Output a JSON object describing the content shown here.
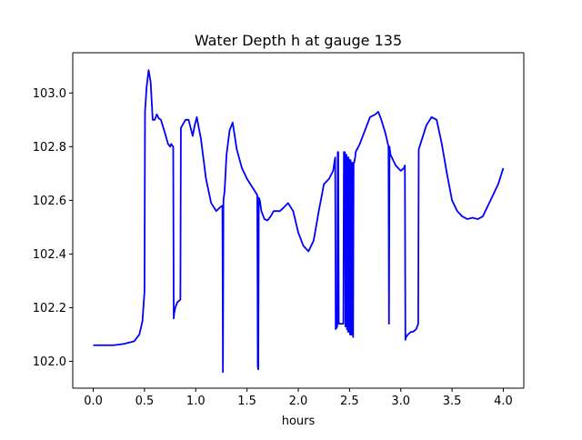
{
  "chart_data": {
    "type": "line",
    "title": "Water Depth h at gauge 135",
    "xlabel": "hours",
    "ylabel": "",
    "xlim": [
      -0.2,
      4.2
    ],
    "ylim": [
      101.9,
      103.15
    ],
    "xticks": [
      0.0,
      0.5,
      1.0,
      1.5,
      2.0,
      2.5,
      3.0,
      3.5,
      4.0
    ],
    "xtick_labels": [
      "0.0",
      "0.5",
      "1.0",
      "1.5",
      "2.0",
      "2.5",
      "3.0",
      "3.5",
      "4.0"
    ],
    "yticks": [
      102.0,
      102.2,
      102.4,
      102.6,
      102.8,
      103.0
    ],
    "ytick_labels": [
      "102.0",
      "102.2",
      "102.4",
      "102.6",
      "102.8",
      "103.0"
    ],
    "grid": false,
    "series": [
      {
        "color": "#0000ff",
        "x": [
          0.0,
          0.2,
          0.3,
          0.4,
          0.45,
          0.48,
          0.5,
          0.505,
          0.52,
          0.54,
          0.56,
          0.58,
          0.6,
          0.62,
          0.64,
          0.66,
          0.7,
          0.73,
          0.75,
          0.76,
          0.78,
          0.785,
          0.79,
          0.8,
          0.82,
          0.85,
          0.855,
          0.87,
          0.9,
          0.93,
          0.95,
          0.97,
          0.99,
          1.01,
          1.05,
          1.1,
          1.15,
          1.2,
          1.24,
          1.26,
          1.265,
          1.27,
          1.28,
          1.285,
          1.3,
          1.33,
          1.36,
          1.4,
          1.45,
          1.5,
          1.55,
          1.6,
          1.605,
          1.61,
          1.615,
          1.625,
          1.64,
          1.67,
          1.7,
          1.73,
          1.76,
          1.79,
          1.82,
          1.85,
          1.9,
          1.95,
          2.0,
          2.05,
          2.1,
          2.15,
          2.2,
          2.25,
          2.3,
          2.34,
          2.36,
          2.365,
          2.38,
          2.385,
          2.39,
          2.395,
          2.44,
          2.445,
          2.455,
          2.46,
          2.47,
          2.475,
          2.48,
          2.485,
          2.49,
          2.495,
          2.5,
          2.505,
          2.51,
          2.515,
          2.52,
          2.525,
          2.53,
          2.535,
          2.54,
          2.545,
          2.55,
          2.555,
          2.56,
          2.6,
          2.65,
          2.7,
          2.75,
          2.78,
          2.81,
          2.85,
          2.88,
          2.885,
          2.89,
          2.9,
          2.95,
          3.0,
          3.03,
          3.04,
          3.045,
          3.05,
          3.07,
          3.1,
          3.12,
          3.15,
          3.17,
          3.175,
          3.2,
          3.25,
          3.3,
          3.35,
          3.4,
          3.45,
          3.5,
          3.55,
          3.6,
          3.65,
          3.7,
          3.75,
          3.8,
          3.85,
          3.9,
          3.95,
          4.0
        ],
        "y": [
          102.06,
          102.06,
          102.065,
          102.075,
          102.1,
          102.15,
          102.26,
          102.93,
          103.02,
          103.085,
          103.04,
          102.9,
          102.9,
          102.92,
          102.905,
          102.9,
          102.85,
          102.81,
          102.8,
          102.81,
          102.8,
          102.16,
          102.18,
          102.2,
          102.22,
          102.23,
          102.87,
          102.88,
          102.9,
          102.9,
          102.87,
          102.84,
          102.88,
          102.91,
          102.83,
          102.68,
          102.59,
          102.56,
          102.575,
          102.58,
          101.96,
          102.6,
          102.63,
          102.66,
          102.77,
          102.86,
          102.89,
          102.79,
          102.72,
          102.68,
          102.65,
          102.62,
          101.98,
          101.97,
          102.61,
          102.6,
          102.56,
          102.53,
          102.525,
          102.54,
          102.56,
          102.56,
          102.56,
          102.57,
          102.59,
          102.56,
          102.48,
          102.43,
          102.41,
          102.45,
          102.56,
          102.66,
          102.68,
          102.71,
          102.76,
          102.12,
          102.13,
          102.78,
          102.78,
          102.14,
          102.14,
          102.78,
          102.78,
          102.13,
          102.77,
          102.12,
          102.76,
          102.11,
          102.76,
          102.11,
          102.75,
          102.1,
          102.75,
          102.1,
          102.74,
          102.1,
          102.74,
          102.09,
          102.74,
          102.74,
          102.75,
          102.76,
          102.78,
          102.81,
          102.86,
          102.91,
          102.92,
          102.93,
          102.9,
          102.85,
          102.8,
          102.14,
          102.8,
          102.77,
          102.73,
          102.71,
          102.72,
          102.73,
          102.08,
          102.09,
          102.1,
          102.11,
          102.11,
          102.12,
          102.14,
          102.79,
          102.82,
          102.88,
          102.91,
          102.9,
          102.81,
          102.7,
          102.6,
          102.56,
          102.54,
          102.53,
          102.535,
          102.53,
          102.54,
          102.58,
          102.62,
          102.66,
          102.72
        ]
      }
    ]
  }
}
